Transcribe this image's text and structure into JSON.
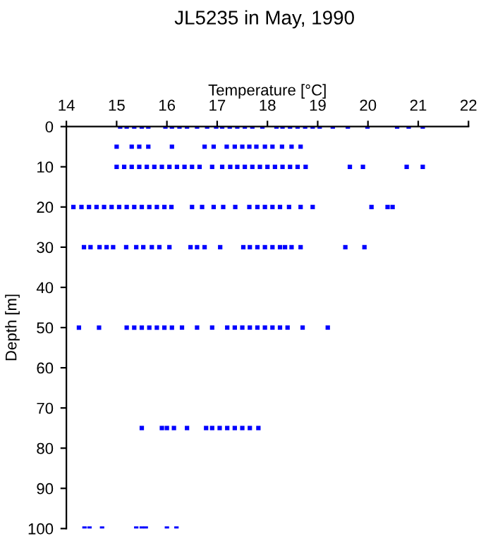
{
  "chart_data": {
    "type": "scatter",
    "title": "JL5235 in May, 1990",
    "xlabel": "Temperature [°C]",
    "ylabel": "Depth [m]",
    "marker": "square",
    "grid": false,
    "legend": false,
    "xlim": [
      14,
      22
    ],
    "xticks": [
      14,
      15,
      16,
      17,
      18,
      19,
      20,
      21,
      22
    ],
    "ylim": [
      100,
      0
    ],
    "yticks": [
      0,
      10,
      20,
      30,
      40,
      50,
      60,
      70,
      80,
      90,
      100
    ],
    "series": [
      {
        "color": "#0000ff",
        "x": [
          15.07,
          15.2,
          15.35,
          15.5,
          15.63,
          15.97,
          16.1,
          16.25,
          16.4,
          16.6,
          16.8,
          16.98,
          17.1,
          17.25,
          17.4,
          17.55,
          17.7,
          17.9,
          18.18,
          18.3,
          18.45,
          18.6,
          18.75,
          18.9,
          19.04,
          19.3,
          19.6,
          19.99,
          20.58,
          20.81,
          21.09
        ],
        "values": [
          0,
          0,
          0,
          0,
          0,
          0,
          0,
          0,
          0,
          0,
          0,
          0,
          0,
          0,
          0,
          0,
          0,
          0,
          0,
          0,
          0,
          0,
          0,
          0,
          0,
          0,
          0,
          0,
          0,
          0,
          0
        ]
      },
      {
        "color": "#0000ff",
        "x": [
          15.0,
          15.3,
          15.45,
          15.63,
          16.1,
          16.75,
          16.93,
          17.19,
          17.35,
          17.5,
          17.64,
          17.78,
          17.95,
          18.1,
          18.29,
          18.48,
          18.66
        ],
        "values": [
          5,
          5,
          5,
          5,
          5,
          5,
          5,
          5,
          5,
          5,
          5,
          5,
          5,
          5,
          5,
          5,
          5
        ]
      },
      {
        "color": "#0000ff",
        "x": [
          15.0,
          15.15,
          15.3,
          15.45,
          15.6,
          15.75,
          15.9,
          16.05,
          16.2,
          16.35,
          16.5,
          16.65,
          16.9,
          17.1,
          17.26,
          17.4,
          17.55,
          17.7,
          17.85,
          18.0,
          18.15,
          18.3,
          18.45,
          18.6,
          18.76,
          19.64,
          19.9,
          20.77,
          21.09
        ],
        "values": [
          10,
          10,
          10,
          10,
          10,
          10,
          10,
          10,
          10,
          10,
          10,
          10,
          10,
          10,
          10,
          10,
          10,
          10,
          10,
          10,
          10,
          10,
          10,
          10,
          10,
          10,
          10,
          10,
          10
        ]
      },
      {
        "color": "#0000ff",
        "x": [
          14.14,
          14.3,
          14.45,
          14.6,
          14.75,
          14.9,
          15.05,
          15.2,
          15.35,
          15.5,
          15.65,
          15.8,
          15.95,
          16.09,
          16.5,
          16.7,
          16.93,
          17.12,
          17.36,
          17.64,
          17.8,
          17.95,
          18.1,
          18.25,
          18.43,
          18.66,
          18.9,
          20.07,
          20.39,
          20.49
        ],
        "values": [
          20,
          20,
          20,
          20,
          20,
          20,
          20,
          20,
          20,
          20,
          20,
          20,
          20,
          20,
          20,
          20,
          20,
          20,
          20,
          20,
          20,
          20,
          20,
          20,
          20,
          20,
          20,
          20,
          20,
          20
        ]
      },
      {
        "color": "#0000ff",
        "x": [
          14.35,
          14.48,
          14.66,
          14.8,
          14.93,
          15.19,
          15.39,
          15.53,
          15.7,
          15.85,
          16.05,
          16.47,
          16.6,
          16.75,
          17.06,
          17.52,
          17.65,
          17.8,
          17.95,
          18.1,
          18.25,
          18.35,
          18.48,
          18.66,
          19.55,
          19.93
        ],
        "values": [
          30,
          30,
          30,
          30,
          30,
          30,
          30,
          30,
          30,
          30,
          30,
          30,
          30,
          30,
          30,
          30,
          30,
          30,
          30,
          30,
          30,
          30,
          30,
          30,
          30,
          30
        ]
      },
      {
        "color": "#0000ff",
        "x": [
          14.25,
          14.65,
          15.2,
          15.35,
          15.5,
          15.65,
          15.8,
          15.95,
          16.1,
          16.3,
          16.6,
          16.9,
          17.2,
          17.35,
          17.5,
          17.65,
          17.8,
          17.95,
          18.1,
          18.25,
          18.4,
          18.7,
          19.2
        ],
        "values": [
          50,
          50,
          50,
          50,
          50,
          50,
          50,
          50,
          50,
          50,
          50,
          50,
          50,
          50,
          50,
          50,
          50,
          50,
          50,
          50,
          50,
          50,
          50
        ]
      },
      {
        "color": "#0000ff",
        "x": [
          15.5,
          15.9,
          16.0,
          16.14,
          16.4,
          16.78,
          16.9,
          17.05,
          17.2,
          17.35,
          17.5,
          17.65,
          17.82
        ],
        "values": [
          75,
          75,
          75,
          75,
          75,
          75,
          75,
          75,
          75,
          75,
          75,
          75,
          75
        ]
      },
      {
        "color": "#0000ff",
        "x": [
          14.36,
          14.46,
          14.71,
          15.39,
          15.5,
          15.58,
          16.0,
          16.19
        ],
        "values": [
          100,
          100,
          100,
          100,
          100,
          100,
          100,
          100
        ]
      }
    ]
  }
}
